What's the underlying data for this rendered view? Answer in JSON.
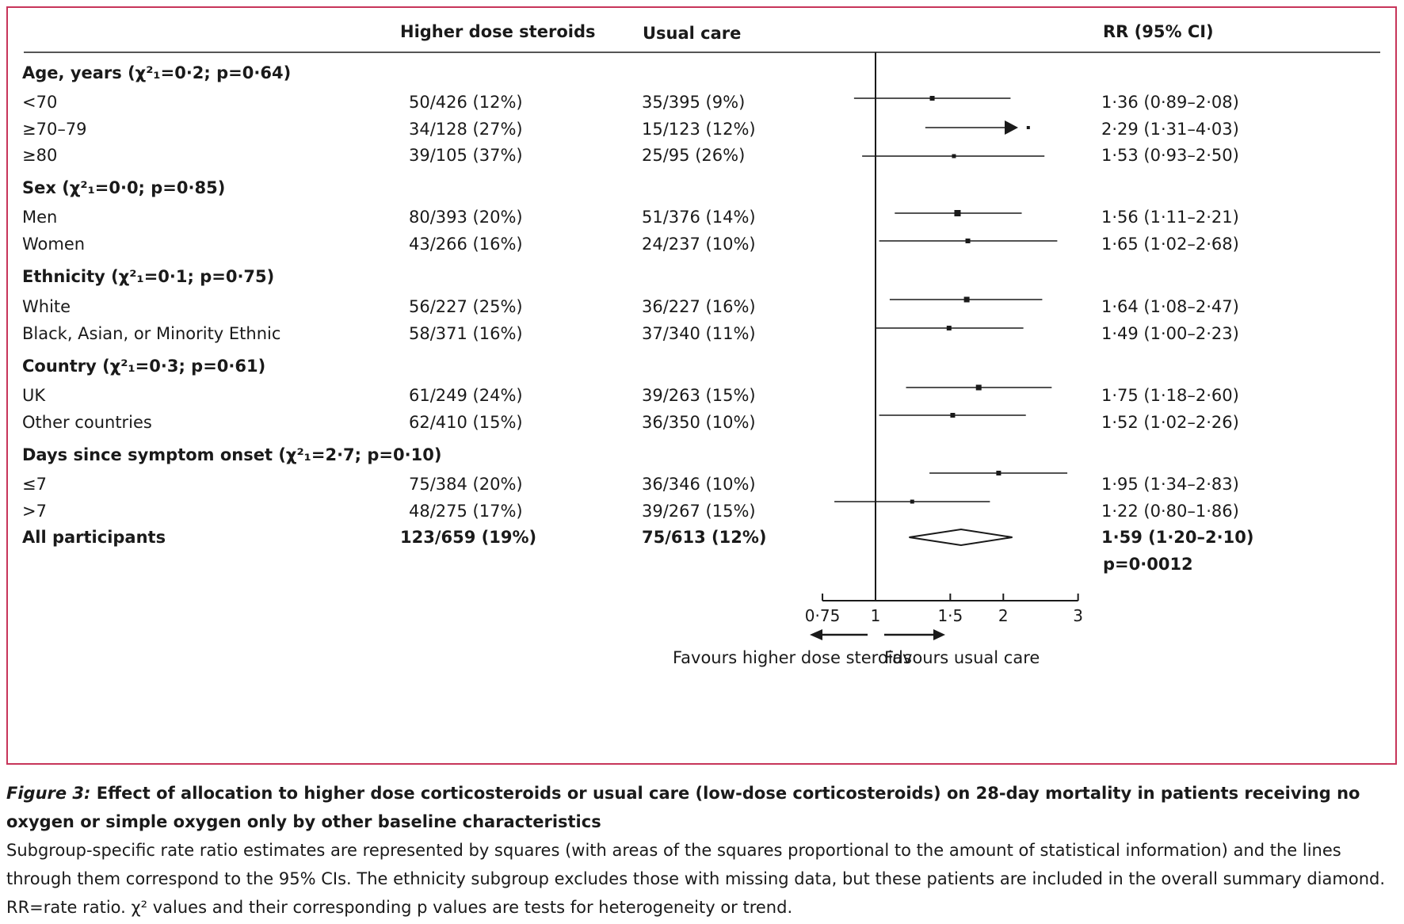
{
  "headers": {
    "higher": "Higher dose steroids",
    "usual": "Usual care",
    "rr": "RR (95% CI)"
  },
  "rows": [
    {
      "label": "Age, years (χ²₁=0·2; p=0·64)",
      "group": true
    },
    {
      "label": "<70",
      "higher": "50/426 (12%)",
      "usual": "35/395 (9%)",
      "rr": "1·36 (0·89–2·08)"
    },
    {
      "label": "≥70–79",
      "higher": "34/128 (27%)",
      "usual": "15/123 (12%)",
      "rr": "2·29 (1·31–4·03)"
    },
    {
      "label": "≥80",
      "higher": "39/105 (37%)",
      "usual": "25/95 (26%)",
      "rr": "1·53 (0·93–2·50)"
    },
    {
      "label": "Sex (χ²₁=0·0; p=0·85)",
      "group": true
    },
    {
      "label": "Men",
      "higher": "80/393 (20%)",
      "usual": "51/376 (14%)",
      "rr": "1·56 (1·11–2·21)"
    },
    {
      "label": "Women",
      "higher": "43/266 (16%)",
      "usual": "24/237 (10%)",
      "rr": "1·65 (1·02–2·68)"
    },
    {
      "label": "Ethnicity (χ²₁=0·1; p=0·75)",
      "group": true
    },
    {
      "label": "White",
      "higher": "56/227 (25%)",
      "usual": "36/227 (16%)",
      "rr": "1·64 (1·08–2·47)"
    },
    {
      "label": "Black, Asian, or Minority Ethnic",
      "higher": "58/371 (16%)",
      "usual": "37/340 (11%)",
      "rr": "1·49 (1·00–2·23)"
    },
    {
      "label": "Country (χ²₁=0·3; p=0·61)",
      "group": true
    },
    {
      "label": "UK",
      "higher": "61/249 (24%)",
      "usual": "39/263 (15%)",
      "rr": "1·75 (1·18–2·60)"
    },
    {
      "label": "Other countries",
      "higher": "62/410 (15%)",
      "usual": "36/350 (10%)",
      "rr": "1·52 (1·02–2·26)"
    },
    {
      "label": "Days since symptom onset (χ²₁=2·7; p=0·10)",
      "group": true
    },
    {
      "label": "≤7",
      "higher": "75/384 (20%)",
      "usual": "36/346 (10%)",
      "rr": "1·95 (1·34–2·83)"
    },
    {
      "label": ">7",
      "higher": "48/275 (17%)",
      "usual": "39/267 (15%)",
      "rr": "1·22 (0·80–1·86)"
    },
    {
      "label": "All participants",
      "higher": "123/659 (19%)",
      "usual": "75/613 (12%)",
      "rr": "1·59 (1·20–2·10)",
      "bold": true,
      "overall": true
    }
  ],
  "p_overall": "p=0·0012",
  "favours": {
    "left": "Favours higher dose steroids",
    "right": "Favours usual care"
  },
  "colors": {
    "frame": "#c7355a",
    "ink": "#1a1a1a"
  },
  "chart_data": {
    "type": "forest",
    "x_scale": "log",
    "reference_line": 1,
    "x_ticks": [
      0.75,
      1,
      1.5,
      2,
      3
    ],
    "x_tick_labels": [
      "0·75",
      "1",
      "1·5",
      "2",
      "3"
    ],
    "estimates": [
      {
        "label": "<70",
        "rr": 1.36,
        "lo": 0.89,
        "hi": 2.08
      },
      {
        "label": "≥70–79",
        "rr": 2.29,
        "lo": 1.31,
        "hi": 4.03,
        "arrow_right": true
      },
      {
        "label": "≥80",
        "rr": 1.53,
        "lo": 0.93,
        "hi": 2.5
      },
      {
        "label": "Men",
        "rr": 1.56,
        "lo": 1.11,
        "hi": 2.21
      },
      {
        "label": "Women",
        "rr": 1.65,
        "lo": 1.02,
        "hi": 2.68
      },
      {
        "label": "White",
        "rr": 1.64,
        "lo": 1.08,
        "hi": 2.47
      },
      {
        "label": "Black, Asian, or Minority Ethnic",
        "rr": 1.49,
        "lo": 1.0,
        "hi": 2.23
      },
      {
        "label": "UK",
        "rr": 1.75,
        "lo": 1.18,
        "hi": 2.6
      },
      {
        "label": "Other countries",
        "rr": 1.52,
        "lo": 1.02,
        "hi": 2.26
      },
      {
        "label": "≤7",
        "rr": 1.95,
        "lo": 1.34,
        "hi": 2.83
      },
      {
        "label": ">7",
        "rr": 1.22,
        "lo": 0.8,
        "hi": 1.86
      },
      {
        "label": "All participants",
        "rr": 1.59,
        "lo": 1.2,
        "hi": 2.1,
        "diamond": true
      }
    ]
  },
  "caption": {
    "fig": "Figure 3:",
    "title": " Effect of allocation to higher dose corticosteroids or usual care (low-dose corticosteroids) on 28-day mortality in patients receiving no oxygen or simple oxygen only by other baseline characteristics",
    "body": "Subgroup-specific rate ratio estimates are represented by squares (with areas of the squares proportional to the amount of statistical information) and the lines through them correspond to the 95% CIs. The ethnicity subgroup excludes those with missing data, but these patients are included in the overall summary diamond. RR=rate ratio. χ² values and their corresponding p values are tests for heterogeneity or trend."
  }
}
